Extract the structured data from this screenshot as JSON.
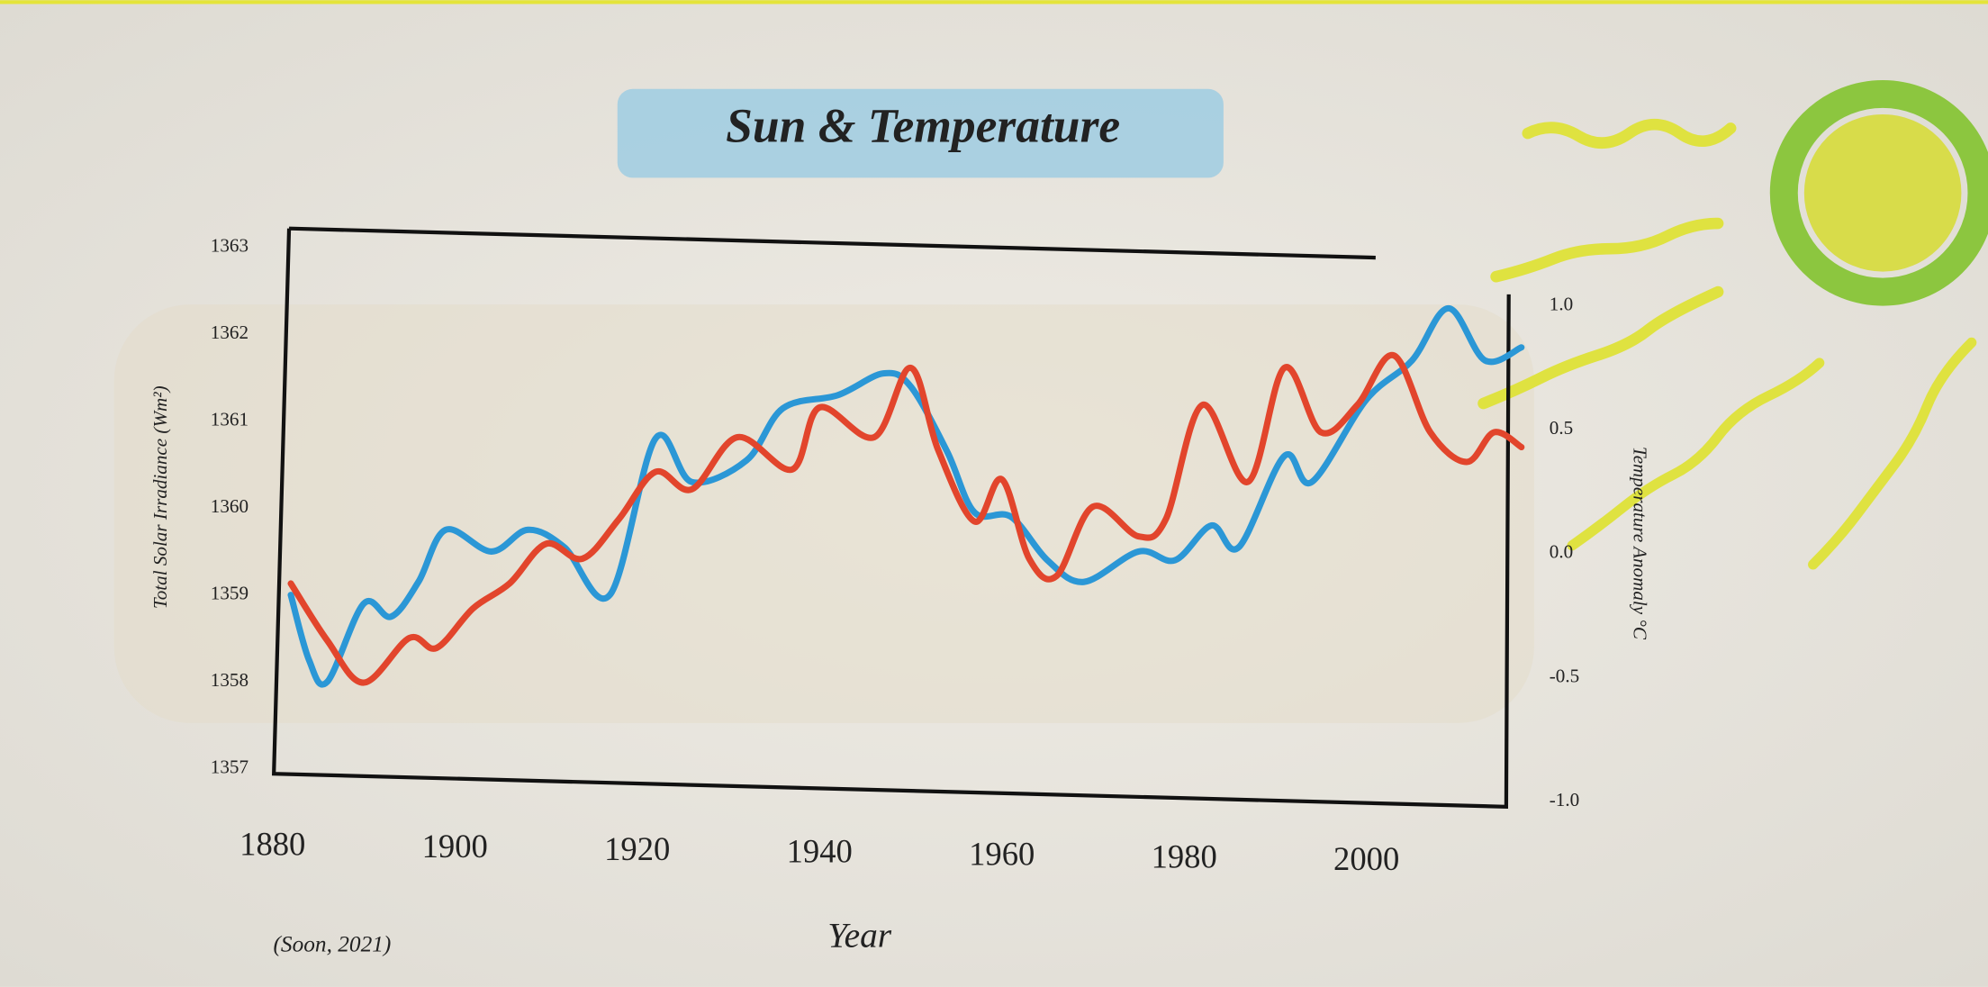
{
  "chart_data": {
    "type": "line",
    "title": "Sun & Temperature",
    "x_label": "Year",
    "y_label": "Total Solar Irradiance (Wm²)",
    "y2_label": "Temperature Anomaly °C",
    "annotation": "(Soon, 2021)",
    "xlim": [
      1880,
      2017
    ],
    "xticks": [
      1880,
      1900,
      1920,
      1940,
      1960,
      1980,
      2000
    ],
    "ylim": [
      1357,
      1363
    ],
    "yticks": [
      1357,
      1358,
      1359,
      1360,
      1361,
      1362,
      1363
    ],
    "y2lim": [
      -1,
      1
    ],
    "y2ticks": [
      {
        "value": -1,
        "label": "-1.0"
      },
      {
        "value": -0.5,
        "label": "-0.5"
      },
      {
        "value": 0,
        "label": "0.0"
      },
      {
        "value": 0.5,
        "label": "0.5"
      },
      {
        "value": 1,
        "label": "1.0"
      }
    ],
    "series": [
      {
        "color": "#2b97d6",
        "x": [
          1882,
          1884,
          1886,
          1890,
          1893,
          1896,
          1899,
          1904,
          1908,
          1912,
          1917,
          1922,
          1926,
          1932,
          1936,
          1942,
          1947,
          1950,
          1954,
          1957,
          1961,
          1965,
          1969,
          1975,
          1979,
          1983,
          1986,
          1991,
          1994,
          2000,
          2005,
          2009,
          2013,
          2017
        ],
        "values": [
          1359.0,
          1358.25,
          1358.0,
          1358.9,
          1358.75,
          1359.15,
          1359.75,
          1359.5,
          1359.75,
          1359.55,
          1359.0,
          1360.8,
          1360.3,
          1360.55,
          1361.15,
          1361.3,
          1361.55,
          1361.4,
          1360.65,
          1359.95,
          1359.9,
          1359.4,
          1359.15,
          1359.5,
          1359.4,
          1359.8,
          1359.55,
          1360.6,
          1360.3,
          1361.25,
          1361.7,
          1362.3,
          1361.7,
          1361.85
        ]
      },
      {
        "color": "#e2452c",
        "axis": "y2",
        "x": [
          1882,
          1886,
          1890,
          1895,
          1898,
          1902,
          1906,
          1910,
          1914,
          1918,
          1922,
          1926,
          1931,
          1937,
          1940,
          1946,
          1950,
          1953,
          1957,
          1960,
          1963,
          1966,
          1970,
          1975,
          1978,
          1982,
          1987,
          1991,
          1995,
          1999,
          2003,
          2007,
          2011,
          2014,
          2017
        ],
        "values": [
          -0.12,
          -0.35,
          -0.52,
          -0.34,
          -0.38,
          -0.22,
          -0.12,
          0.04,
          -0.02,
          0.14,
          0.33,
          0.26,
          0.47,
          0.34,
          0.59,
          0.47,
          0.75,
          0.42,
          0.13,
          0.3,
          -0.02,
          -0.09,
          0.19,
          0.07,
          0.14,
          0.6,
          0.29,
          0.75,
          0.49,
          0.6,
          0.8,
          0.49,
          0.37,
          0.49,
          0.43
        ]
      }
    ]
  }
}
